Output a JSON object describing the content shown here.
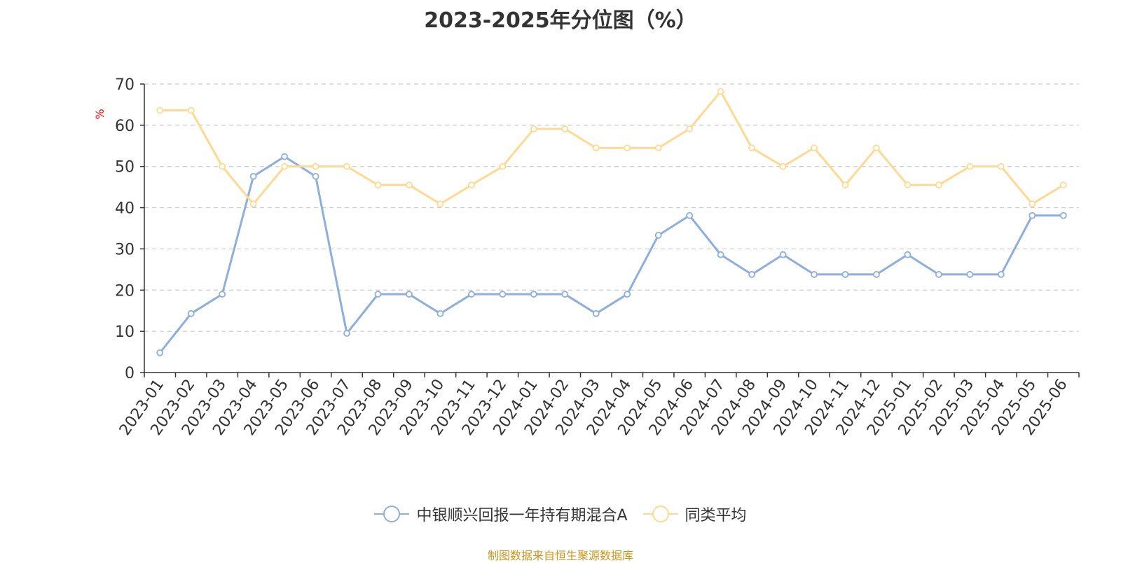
{
  "title": "2023-2025年分位图（%）",
  "source": "制图数据来自恒生聚源数据库",
  "colors": {
    "series1": "#8eaedc",
    "series2": "#fdd993",
    "axis": "#333333",
    "grid": "#cccccc",
    "ylabel": "#ff0000",
    "source": "#c8961e"
  },
  "chart_data": {
    "type": "line",
    "title": "2023-2025年分位图（%）",
    "ylabel": "%",
    "xlabel": "",
    "ylim": [
      0,
      70
    ],
    "yticks": [
      0,
      10,
      20,
      30,
      40,
      50,
      60,
      70
    ],
    "grid": true,
    "legend_position": "bottom",
    "categories": [
      "2023-01",
      "2023-02",
      "2023-03",
      "2023-04",
      "2023-05",
      "2023-06",
      "2023-07",
      "2023-08",
      "2023-09",
      "2023-10",
      "2023-11",
      "2023-12",
      "2024-01",
      "2024-02",
      "2024-03",
      "2024-04",
      "2024-05",
      "2024-06",
      "2024-07",
      "2024-08",
      "2024-09",
      "2024-10",
      "2024-11",
      "2024-12",
      "2025-01",
      "2025-02",
      "2025-03",
      "2025-04",
      "2025-05",
      "2025-06"
    ],
    "series": [
      {
        "name": "中银顺兴回报一年持有期混合A",
        "values": [
          4.8,
          14.3,
          19.0,
          47.6,
          52.4,
          47.6,
          9.5,
          19.0,
          19.0,
          14.3,
          19.0,
          19.0,
          19.0,
          19.0,
          14.3,
          19.0,
          33.3,
          38.1,
          28.6,
          23.8,
          28.6,
          23.8,
          23.8,
          23.8,
          28.6,
          23.8,
          23.8,
          23.8,
          38.1,
          38.1
        ]
      },
      {
        "name": "同类平均",
        "values": [
          63.6,
          63.6,
          50.0,
          40.9,
          50.0,
          50.0,
          50.0,
          45.5,
          45.5,
          40.9,
          45.5,
          50.0,
          59.1,
          59.1,
          54.5,
          54.5,
          54.5,
          59.1,
          68.2,
          54.5,
          50.0,
          54.5,
          45.5,
          54.5,
          45.5,
          45.5,
          50.0,
          50.0,
          40.9,
          45.5
        ]
      }
    ]
  }
}
